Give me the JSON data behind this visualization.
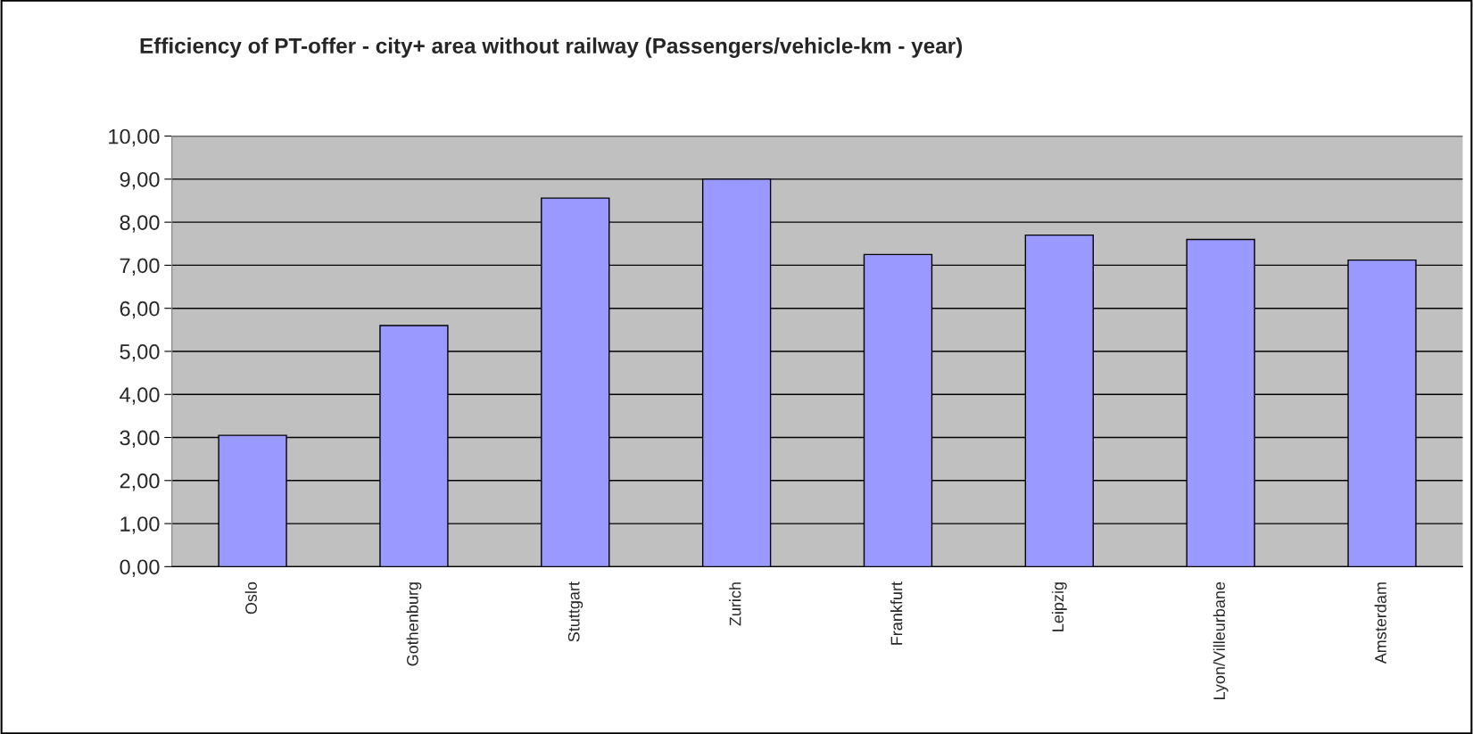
{
  "chart_data": {
    "type": "bar",
    "title": "Efficiency of PT-offer - city+ area without railway (Passengers/vehicle-km - year)",
    "categories": [
      "Oslo",
      "Gothenburg",
      "Stuttgart",
      "Zurich",
      "Frankfurt",
      "Leipzig",
      "Lyon/Villeurbane",
      "Amsterdam"
    ],
    "values": [
      3.05,
      5.6,
      8.56,
      9.0,
      7.25,
      7.7,
      7.6,
      7.12
    ],
    "color": "#9999ff",
    "ylim": [
      0,
      10
    ],
    "yticks": [
      {
        "value": 0,
        "label": "0,00"
      },
      {
        "value": 1,
        "label": "1,00"
      },
      {
        "value": 2,
        "label": "2,00"
      },
      {
        "value": 3,
        "label": "3,00"
      },
      {
        "value": 4,
        "label": "4,00"
      },
      {
        "value": 5,
        "label": "5,00"
      },
      {
        "value": 6,
        "label": "6,00"
      },
      {
        "value": 7,
        "label": "7,00"
      },
      {
        "value": 8,
        "label": "8,00"
      },
      {
        "value": 9,
        "label": "9,00"
      },
      {
        "value": 10,
        "label": "10,00"
      }
    ],
    "grid": "y",
    "legend": false
  }
}
